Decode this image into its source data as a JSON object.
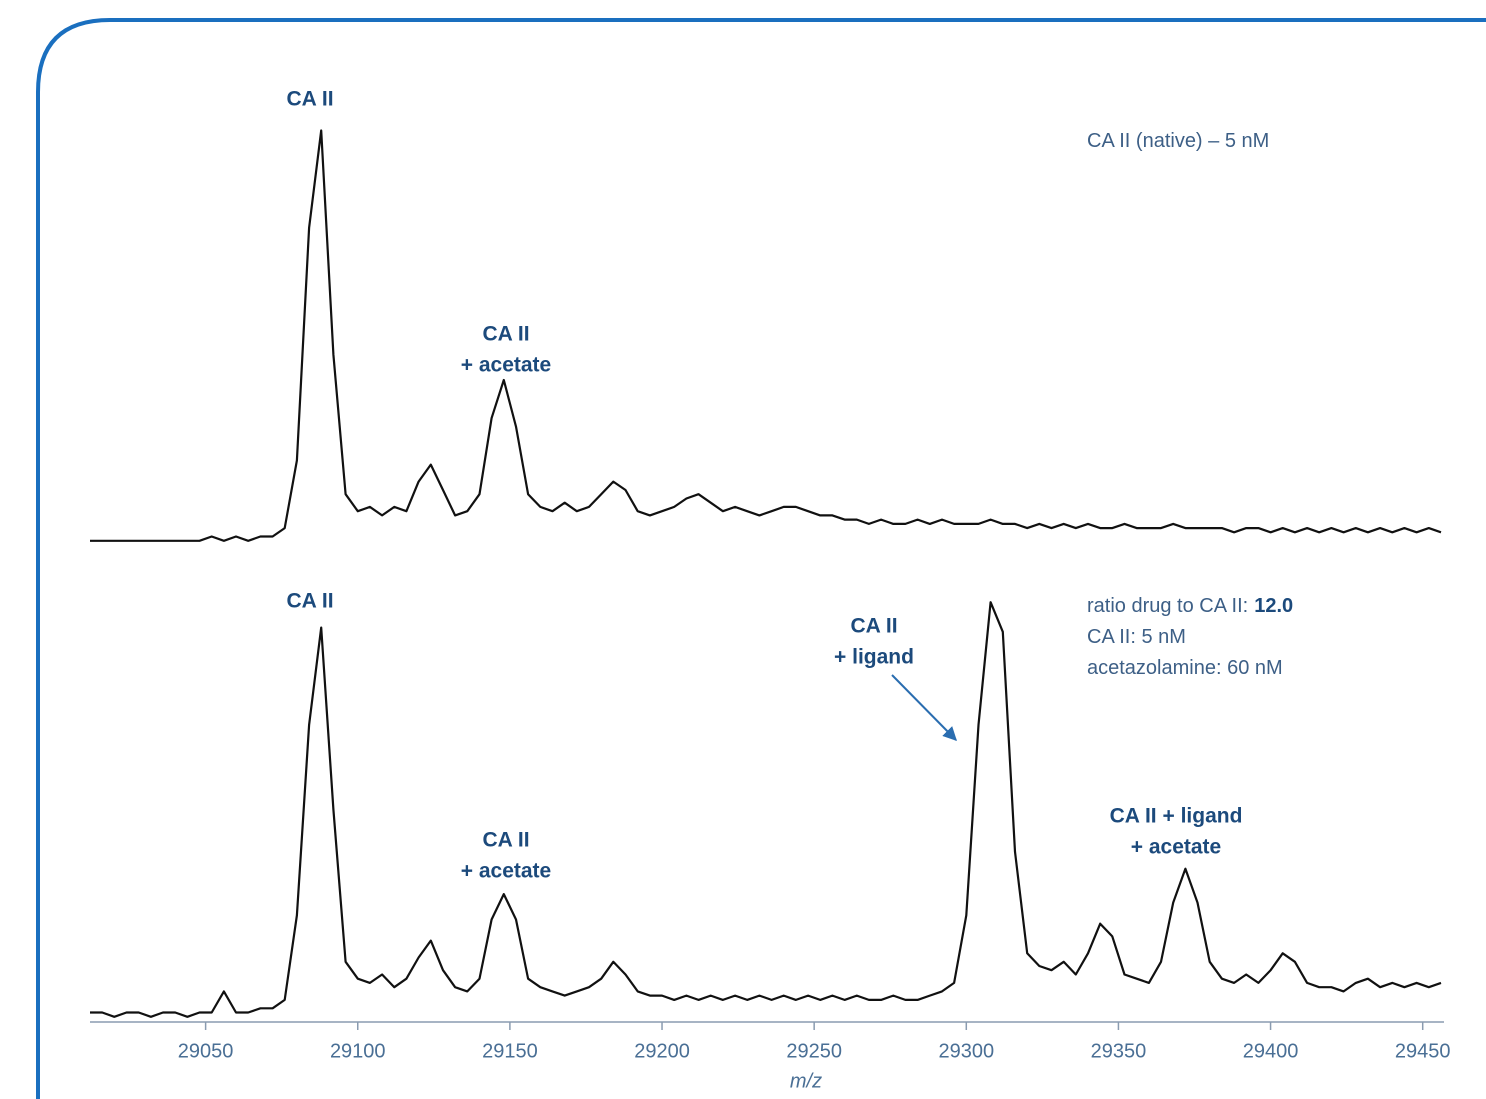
{
  "chart_data": [
    {
      "type": "line",
      "color": "#111111",
      "xlim": [
        29012,
        29457
      ],
      "ylim": [
        0,
        100
      ],
      "x": [
        29012,
        29016,
        29020,
        29024,
        29028,
        29032,
        29036,
        29040,
        29044,
        29048,
        29052,
        29056,
        29060,
        29064,
        29068,
        29072,
        29076,
        29080,
        29084,
        29088,
        29092,
        29096,
        29100,
        29104,
        29108,
        29112,
        29116,
        29120,
        29124,
        29128,
        29132,
        29136,
        29140,
        29144,
        29148,
        29152,
        29156,
        29160,
        29164,
        29168,
        29172,
        29176,
        29180,
        29184,
        29188,
        29192,
        29196,
        29200,
        29204,
        29208,
        29212,
        29216,
        29220,
        29224,
        29228,
        29232,
        29236,
        29240,
        29244,
        29248,
        29252,
        29256,
        29260,
        29264,
        29268,
        29272,
        29276,
        29280,
        29284,
        29288,
        29292,
        29296,
        29300,
        29304,
        29308,
        29312,
        29316,
        29320,
        29324,
        29328,
        29332,
        29336,
        29340,
        29344,
        29348,
        29352,
        29356,
        29360,
        29364,
        29368,
        29372,
        29376,
        29380,
        29384,
        29388,
        29392,
        29396,
        29400,
        29404,
        29408,
        29412,
        29416,
        29420,
        29424,
        29428,
        29432,
        29436,
        29440,
        29444,
        29448,
        29452,
        29456
      ],
      "values": [
        1,
        1,
        1,
        1,
        1,
        1,
        1,
        1,
        1,
        1,
        2,
        1,
        2,
        1,
        2,
        2,
        4,
        20,
        75,
        98,
        45,
        12,
        8,
        9,
        7,
        9,
        8,
        15,
        19,
        13,
        7,
        8,
        12,
        30,
        39,
        28,
        12,
        9,
        8,
        10,
        8,
        9,
        12,
        15,
        13,
        8,
        7,
        8,
        9,
        11,
        12,
        10,
        8,
        9,
        8,
        7,
        8,
        9,
        9,
        8,
        7,
        7,
        6,
        6,
        5,
        6,
        5,
        5,
        6,
        5,
        6,
        5,
        5,
        5,
        6,
        5,
        5,
        4,
        5,
        4,
        5,
        4,
        5,
        4,
        4,
        5,
        4,
        4,
        4,
        5,
        4,
        4,
        4,
        4,
        3,
        4,
        4,
        3,
        4,
        3,
        4,
        3,
        4,
        3,
        4,
        3,
        4,
        3,
        4,
        3,
        4,
        3
      ],
      "annotations": [
        {
          "lines": [
            "CA II"
          ]
        },
        {
          "lines": [
            "CA II",
            "+ acetate"
          ]
        }
      ],
      "notes": [
        {
          "text": "CA II (native) – 5 nM"
        }
      ]
    },
    {
      "type": "line",
      "color": "#111111",
      "xlim": [
        29012,
        29457
      ],
      "ylim": [
        0,
        100
      ],
      "xticks": [
        29050,
        29100,
        29150,
        29200,
        29250,
        29300,
        29350,
        29400,
        29450
      ],
      "xlabel": "m/z",
      "x": [
        29012,
        29016,
        29020,
        29024,
        29028,
        29032,
        29036,
        29040,
        29044,
        29048,
        29052,
        29056,
        29060,
        29064,
        29068,
        29072,
        29076,
        29080,
        29084,
        29088,
        29092,
        29096,
        29100,
        29104,
        29108,
        29112,
        29116,
        29120,
        29124,
        29128,
        29132,
        29136,
        29140,
        29144,
        29148,
        29152,
        29156,
        29160,
        29164,
        29168,
        29172,
        29176,
        29180,
        29184,
        29188,
        29192,
        29196,
        29200,
        29204,
        29208,
        29212,
        29216,
        29220,
        29224,
        29228,
        29232,
        29236,
        29240,
        29244,
        29248,
        29252,
        29256,
        29260,
        29264,
        29268,
        29272,
        29276,
        29280,
        29284,
        29288,
        29292,
        29296,
        29300,
        29304,
        29308,
        29312,
        29316,
        29320,
        29324,
        29328,
        29332,
        29336,
        29340,
        29344,
        29348,
        29352,
        29356,
        29360,
        29364,
        29368,
        29372,
        29376,
        29380,
        29384,
        29388,
        29392,
        29396,
        29400,
        29404,
        29408,
        29412,
        29416,
        29420,
        29424,
        29428,
        29432,
        29436,
        29440,
        29444,
        29448,
        29452,
        29456
      ],
      "values": [
        2,
        2,
        1,
        2,
        2,
        1,
        2,
        2,
        1,
        2,
        2,
        7,
        2,
        2,
        3,
        3,
        5,
        25,
        70,
        93,
        50,
        14,
        10,
        9,
        11,
        8,
        10,
        15,
        19,
        12,
        8,
        7,
        10,
        24,
        30,
        24,
        10,
        8,
        7,
        6,
        7,
        8,
        10,
        14,
        11,
        7,
        6,
        6,
        5,
        6,
        5,
        6,
        5,
        6,
        5,
        6,
        5,
        6,
        5,
        6,
        5,
        6,
        5,
        6,
        5,
        5,
        6,
        5,
        5,
        6,
        7,
        9,
        25,
        70,
        99,
        92,
        40,
        16,
        13,
        12,
        14,
        11,
        16,
        23,
        20,
        11,
        10,
        9,
        14,
        28,
        36,
        28,
        14,
        10,
        9,
        11,
        9,
        12,
        16,
        14,
        9,
        8,
        8,
        7,
        9,
        10,
        8,
        9,
        8,
        9,
        8,
        9
      ],
      "annotations": [
        {
          "lines": [
            "CA II"
          ]
        },
        {
          "lines": [
            "CA II",
            "+ acetate"
          ]
        },
        {
          "lines": [
            "CA II",
            "+ ligand"
          ]
        },
        {
          "lines": [
            "CA II + ligand",
            "+ acetate"
          ]
        }
      ],
      "notes": [
        {
          "text": "ratio drug to CA II:",
          "bold": "12.0"
        },
        {
          "text": "CA II: 5 nM"
        },
        {
          "text": "acetazolamine: 60 nM"
        }
      ]
    }
  ]
}
